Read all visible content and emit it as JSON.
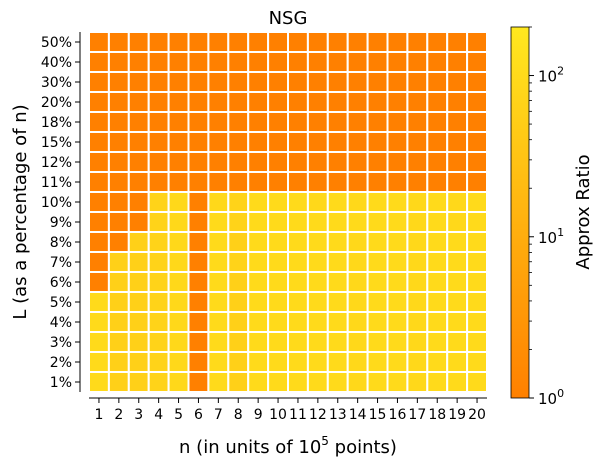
{
  "chart_data": {
    "type": "heatmap",
    "title": "NSG",
    "xlabel": "n (in units of 10",
    "xlabel_sup": "5",
    "xlabel_suffix": " points)",
    "ylabel": "L (as a percentage of n)",
    "x_categories": [
      "1",
      "2",
      "3",
      "4",
      "5",
      "6",
      "7",
      "8",
      "9",
      "10",
      "11",
      "12",
      "13",
      "14",
      "15",
      "16",
      "17",
      "18",
      "19",
      "20"
    ],
    "y_categories": [
      "50%",
      "40%",
      "30%",
      "20%",
      "18%",
      "15%",
      "12%",
      "11%",
      "10%",
      "9%",
      "8%",
      "7%",
      "6%",
      "5%",
      "4%",
      "3%",
      "2%",
      "1%"
    ],
    "values": [
      [
        1,
        1,
        1,
        1,
        1,
        1,
        1,
        1,
        1,
        1,
        1,
        1,
        1,
        1,
        1,
        1,
        1,
        1,
        1,
        1
      ],
      [
        1,
        1,
        1,
        1,
        1,
        1,
        1,
        1,
        1,
        1,
        1,
        1,
        1,
        1,
        1,
        1,
        1,
        1,
        1,
        1
      ],
      [
        1,
        1,
        1,
        1,
        1,
        1,
        1,
        1,
        1,
        1,
        1,
        1,
        1,
        1,
        1,
        1,
        1,
        1,
        1,
        1
      ],
      [
        1,
        1,
        1,
        1,
        1,
        1,
        1,
        1,
        1,
        1,
        1,
        1,
        1,
        1,
        1,
        1,
        1,
        1,
        1,
        1
      ],
      [
        1,
        1,
        1,
        1,
        1,
        1,
        1,
        1,
        1,
        1,
        1,
        1,
        1,
        1,
        1,
        1,
        1,
        1,
        1,
        1
      ],
      [
        1,
        1,
        1,
        1,
        1,
        1,
        1,
        1,
        1,
        1,
        1,
        1,
        1,
        1,
        1,
        1,
        1,
        1,
        1,
        1
      ],
      [
        1,
        1,
        1,
        1,
        1,
        1,
        1,
        1,
        1,
        1,
        1,
        1,
        1,
        1,
        1,
        1,
        1,
        1,
        1,
        1
      ],
      [
        1,
        1,
        1,
        1,
        1,
        1,
        1,
        1,
        1,
        1,
        1,
        1,
        1,
        1,
        1,
        1,
        1,
        1,
        1,
        1
      ],
      [
        1,
        1,
        1,
        70,
        90,
        1,
        90,
        70,
        100,
        100,
        100,
        90,
        100,
        90,
        100,
        100,
        90,
        100,
        90,
        100
      ],
      [
        1,
        1,
        1,
        70,
        90,
        1,
        100,
        70,
        100,
        100,
        100,
        100,
        100,
        100,
        100,
        100,
        90,
        100,
        90,
        100
      ],
      [
        1,
        1,
        60,
        70,
        90,
        1,
        100,
        60,
        100,
        100,
        100,
        100,
        100,
        90,
        100,
        100,
        90,
        100,
        100,
        100
      ],
      [
        1,
        60,
        60,
        70,
        90,
        1,
        100,
        70,
        100,
        100,
        100,
        100,
        100,
        90,
        100,
        100,
        90,
        100,
        100,
        100
      ],
      [
        1,
        60,
        60,
        70,
        90,
        1,
        100,
        60,
        100,
        100,
        100,
        100,
        100,
        90,
        100,
        100,
        90,
        100,
        100,
        100
      ],
      [
        100,
        60,
        60,
        70,
        90,
        1,
        100,
        60,
        100,
        100,
        100,
        100,
        100,
        90,
        100,
        100,
        90,
        100,
        100,
        100
      ],
      [
        100,
        60,
        60,
        70,
        90,
        1,
        100,
        60,
        100,
        100,
        100,
        100,
        100,
        90,
        100,
        100,
        90,
        100,
        100,
        100
      ],
      [
        100,
        60,
        60,
        70,
        90,
        1,
        100,
        60,
        100,
        100,
        100,
        100,
        100,
        90,
        100,
        100,
        90,
        100,
        100,
        100
      ],
      [
        100,
        60,
        60,
        70,
        90,
        1,
        100,
        60,
        100,
        100,
        100,
        100,
        100,
        90,
        100,
        100,
        90,
        100,
        100,
        100
      ],
      [
        100,
        60,
        60,
        70,
        90,
        1,
        100,
        60,
        100,
        100,
        100,
        100,
        100,
        90,
        100,
        100,
        90,
        100,
        100,
        100
      ]
    ],
    "colorbar": {
      "label": "Approx Ratio",
      "scale": "log",
      "range": [
        1,
        200
      ],
      "tick_labels": [
        {
          "value": 1,
          "base": "10",
          "exp": "0"
        },
        {
          "value": 10,
          "base": "10",
          "exp": "1"
        },
        {
          "value": 100,
          "base": "10",
          "exp": "2"
        }
      ],
      "colors": [
        "#ff8000",
        "#ffe81f"
      ]
    },
    "cell_border_color": "#ffffff",
    "grid": false,
    "legend": "colorbar-right"
  }
}
